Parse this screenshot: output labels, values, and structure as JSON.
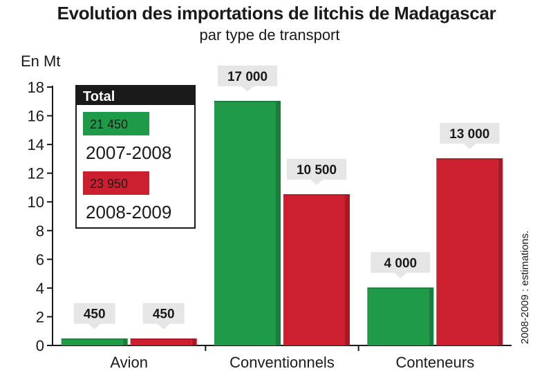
{
  "chart_data": {
    "type": "bar",
    "title": "Evolution des importations de litchis de Madagascar",
    "subtitle": "par type de transport",
    "ylabel": "En Mt",
    "xlabel": "",
    "ylim": [
      0,
      18
    ],
    "yticks": [
      0,
      2,
      4,
      6,
      8,
      10,
      12,
      14,
      16,
      18
    ],
    "categories": [
      "Avion",
      "Conventionnels",
      "Conteneurs"
    ],
    "series": [
      {
        "name": "2007-2008",
        "color": "#1f9a48",
        "values": [
          0.45,
          17,
          4
        ],
        "labels": [
          "450",
          "17 000",
          "4 000"
        ]
      },
      {
        "name": "2008-2009",
        "color": "#cc1f2f",
        "values": [
          0.45,
          10.5,
          13
        ],
        "labels": [
          "450",
          "10 500",
          "13 000"
        ]
      }
    ],
    "legend": {
      "header": "Total",
      "placement": "top-left",
      "entries": [
        {
          "value": "21 450",
          "label": "2007-2008",
          "color": "#1f9a48"
        },
        {
          "value": "23 950",
          "label": "2008-2009",
          "color": "#cc1f2f"
        }
      ]
    },
    "note": "2008-2009 : estimations.",
    "grid": false
  }
}
